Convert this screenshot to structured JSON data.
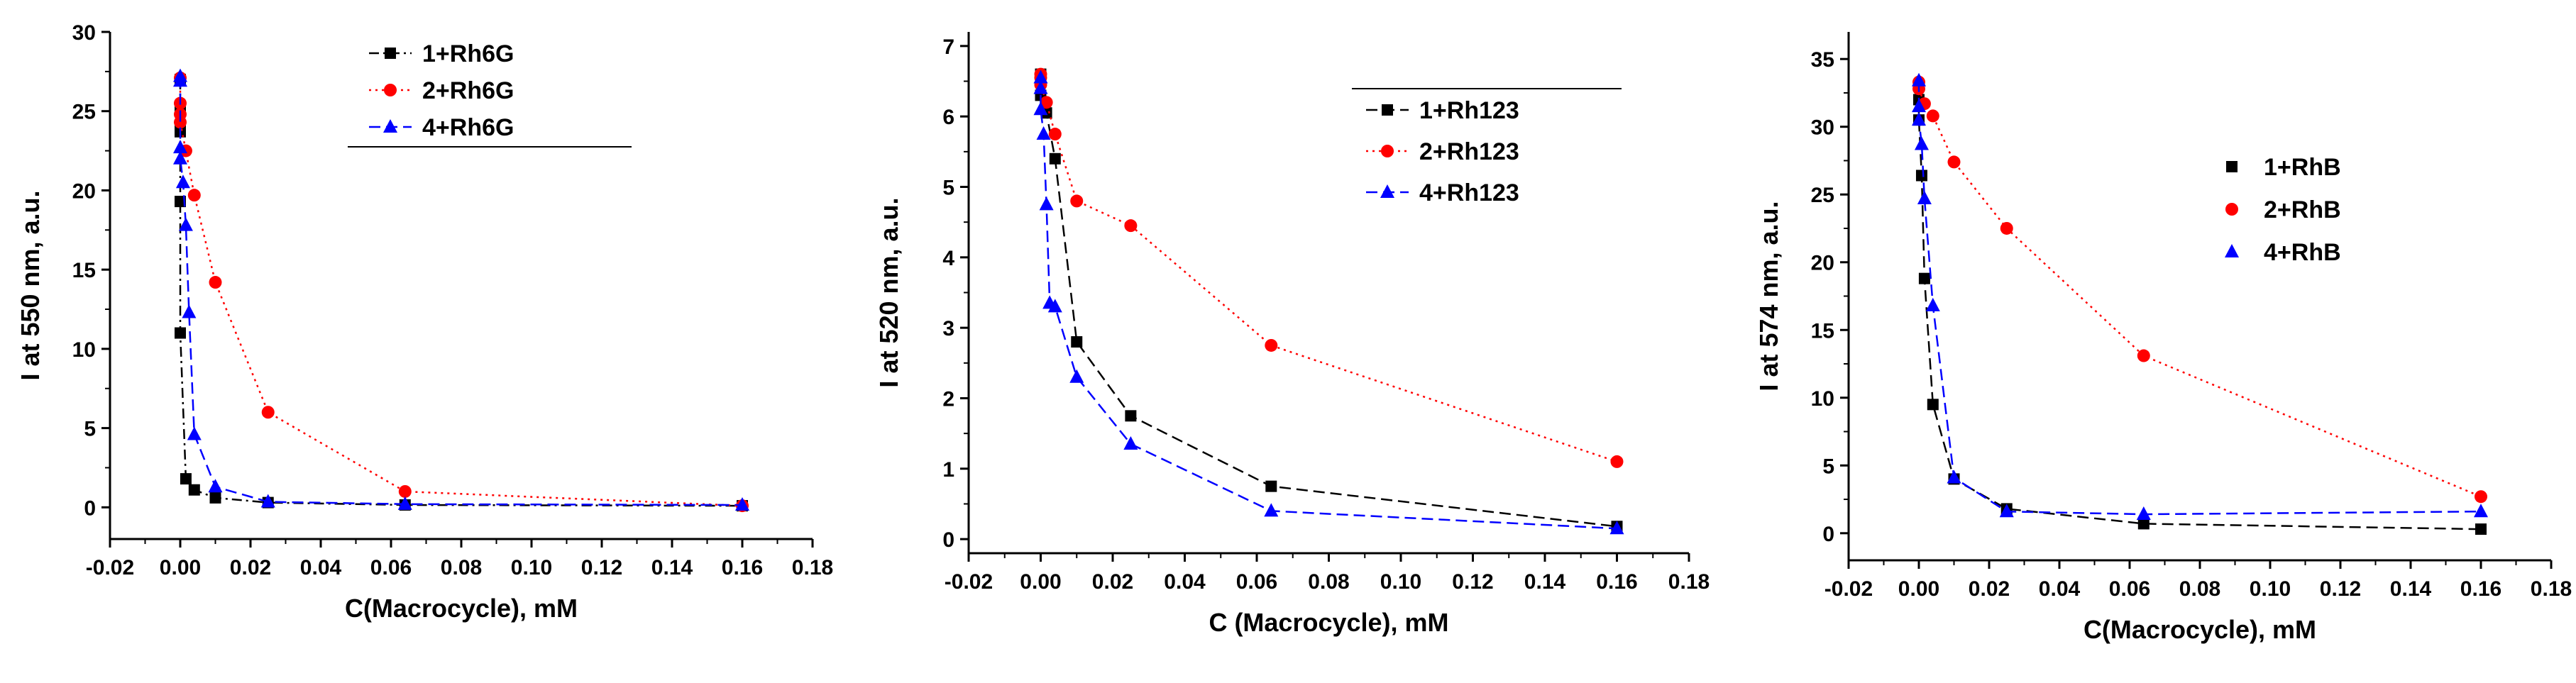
{
  "chart_data": [
    {
      "type": "scatter",
      "title": "",
      "xlabel": "C(Macrocycle), mM",
      "ylabel": "I at 550 nm, a.u.",
      "xlim": [
        -0.02,
        0.18
      ],
      "ylim": [
        -2,
        30
      ],
      "xticks": [
        "-0.02",
        "0.00",
        "0.02",
        "0.04",
        "0.06",
        "0.08",
        "0.10",
        "0.12",
        "0.14",
        "0.16",
        "0.18"
      ],
      "yticks": [
        "0",
        "5",
        "10",
        "15",
        "20",
        "25",
        "30"
      ],
      "legend_position": "top-right",
      "legend_border": "bottom",
      "series": [
        {
          "name": "1+Rh6G",
          "color": "#000000",
          "marker": "square",
          "line": "dashdot",
          "x": [
            0,
            0,
            0,
            0,
            0,
            0,
            0.0016,
            0.004,
            0.01,
            0.025,
            0.064,
            0.16
          ],
          "y": [
            27,
            25,
            24,
            23.7,
            19.3,
            11,
            1.8,
            1.1,
            0.6,
            0.3,
            0.15,
            0.1
          ]
        },
        {
          "name": "2+Rh6G",
          "color": "#ff0000",
          "marker": "circle",
          "line": "dotted",
          "x": [
            0,
            0,
            0,
            0,
            0.0016,
            0.004,
            0.01,
            0.025,
            0.064,
            0.16
          ],
          "y": [
            27.1,
            25.5,
            24.8,
            24.3,
            22.5,
            19.7,
            14.2,
            6,
            1,
            0.1
          ]
        },
        {
          "name": "4+Rh6G",
          "color": "#0000ff",
          "marker": "triangle",
          "line": "dashed",
          "x": [
            0,
            0,
            0,
            0,
            0.0008,
            0.0016,
            0.0025,
            0.004,
            0.01,
            0.025,
            0.064,
            0.16
          ],
          "y": [
            27.2,
            26.9,
            22.7,
            22,
            20.5,
            17.8,
            12.3,
            4.6,
            1.3,
            0.35,
            0.2,
            0.15
          ]
        }
      ]
    },
    {
      "type": "scatter",
      "title": "",
      "xlabel": "C (Macrocycle), mM",
      "ylabel": "I at 520 nm, a.u.",
      "xlim": [
        -0.02,
        0.18
      ],
      "ylim": [
        -0.2,
        7.2
      ],
      "xticks": [
        "-0.02",
        "0.00",
        "0.02",
        "0.04",
        "0.06",
        "0.08",
        "0.10",
        "0.12",
        "0.14",
        "0.16",
        "0.18"
      ],
      "yticks": [
        "0",
        "1",
        "2",
        "3",
        "4",
        "5",
        "6",
        "7"
      ],
      "legend_position": "top-right",
      "legend_border": "top",
      "series": [
        {
          "name": "1+Rh123",
          "color": "#000000",
          "marker": "square",
          "line": "dashed",
          "x": [
            0,
            0,
            0,
            0.0016,
            0.004,
            0.01,
            0.025,
            0.064,
            0.16
          ],
          "y": [
            6.6,
            6.5,
            6.3,
            6.05,
            5.4,
            2.8,
            1.75,
            0.75,
            0.18
          ]
        },
        {
          "name": "2+Rh123",
          "color": "#ff0000",
          "marker": "circle",
          "line": "dotted",
          "x": [
            0,
            0,
            0,
            0.0016,
            0.004,
            0.01,
            0.025,
            0.064,
            0.16
          ],
          "y": [
            6.6,
            6.55,
            6.45,
            6.2,
            5.75,
            4.8,
            4.45,
            2.75,
            1.1
          ]
        },
        {
          "name": "4+Rh123",
          "color": "#0000ff",
          "marker": "triangle",
          "line": "dashed",
          "x": [
            0,
            0,
            0,
            0.0008,
            0.0016,
            0.0025,
            0.004,
            0.01,
            0.025,
            0.064,
            0.16
          ],
          "y": [
            6.55,
            6.4,
            6.1,
            5.75,
            4.75,
            3.35,
            3.3,
            2.3,
            1.35,
            0.4,
            0.15
          ]
        }
      ]
    },
    {
      "type": "scatter",
      "title": "",
      "xlabel": "C(Macrocycle), mM",
      "ylabel": "I at 574 nm, a.u.",
      "xlim": [
        -0.02,
        0.18
      ],
      "ylim": [
        -2,
        37
      ],
      "xticks": [
        "-0.02",
        "0.00",
        "0.02",
        "0.04",
        "0.06",
        "0.08",
        "0.10",
        "0.12",
        "0.14",
        "0.16",
        "0.18"
      ],
      "yticks": [
        "0",
        "5",
        "10",
        "15",
        "20",
        "25",
        "30",
        "35"
      ],
      "legend_position": "right",
      "legend_border": "none",
      "series": [
        {
          "name": "1+RhB",
          "color": "#000000",
          "marker": "square",
          "line": "dashed",
          "x": [
            0,
            0,
            0,
            0.0008,
            0.0016,
            0.004,
            0.01,
            0.025,
            0.064,
            0.16
          ],
          "y": [
            33,
            32,
            30.5,
            26.4,
            18.8,
            9.5,
            4,
            1.8,
            0.7,
            0.3
          ]
        },
        {
          "name": "2+RhB",
          "color": "#ff0000",
          "marker": "circle",
          "line": "dotted",
          "x": [
            0,
            0,
            0.0016,
            0.004,
            0.01,
            0.025,
            0.064,
            0.16
          ],
          "y": [
            33.3,
            32.8,
            31.7,
            30.8,
            27.4,
            22.5,
            13.1,
            2.7
          ]
        },
        {
          "name": "4+RhB",
          "color": "#0000ff",
          "marker": "triangle",
          "line": "dashed",
          "x": [
            0,
            0,
            0,
            0.0008,
            0.0016,
            0.004,
            0.01,
            0.025,
            0.064,
            0.16
          ],
          "y": [
            33.4,
            31.5,
            30.5,
            28.7,
            24.7,
            16.8,
            4.1,
            1.6,
            1.4,
            1.6
          ]
        }
      ]
    }
  ]
}
